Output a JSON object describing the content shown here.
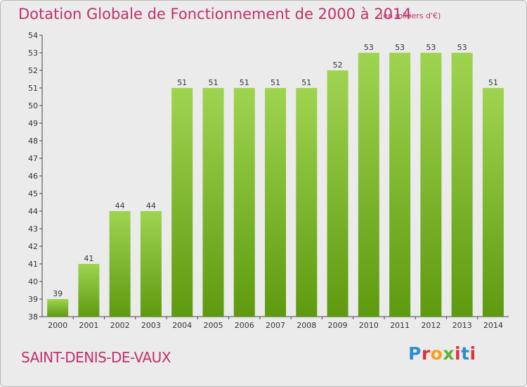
{
  "header": {
    "title": "Dotation Globale de Fonctionnement de 2000 à 2014",
    "subtitle": "(en milliers d'€)"
  },
  "footer": {
    "commune": "SAINT-DENIS-DE-VAUX",
    "logo_text": "Proxiti"
  },
  "colors": {
    "title": "#c0306a",
    "bar_top": "#9fd450",
    "bar_bottom": "#5e9a10",
    "logo": [
      "#2a8fd0",
      "#e0303a",
      "#f7a11a",
      "#60b030",
      "#e0303a",
      "#2a8fd0",
      "#e0303a"
    ]
  },
  "chart_data": {
    "type": "bar",
    "title": "Dotation Globale de Fonctionnement de 2000 à 2014",
    "subtitle": "(en milliers d'€)",
    "categories": [
      "2000",
      "2001",
      "2002",
      "2003",
      "2004",
      "2005",
      "2006",
      "2007",
      "2008",
      "2009",
      "2010",
      "2011",
      "2012",
      "2013",
      "2014"
    ],
    "values": [
      39,
      41,
      44,
      44,
      51,
      51,
      51,
      51,
      51,
      52,
      53,
      53,
      53,
      53,
      51
    ],
    "ylim": [
      38,
      54
    ],
    "yticks": [
      38,
      39,
      40,
      41,
      42,
      43,
      44,
      45,
      46,
      47,
      48,
      49,
      50,
      51,
      52,
      53,
      54
    ],
    "grid": false,
    "data_labels": true
  }
}
